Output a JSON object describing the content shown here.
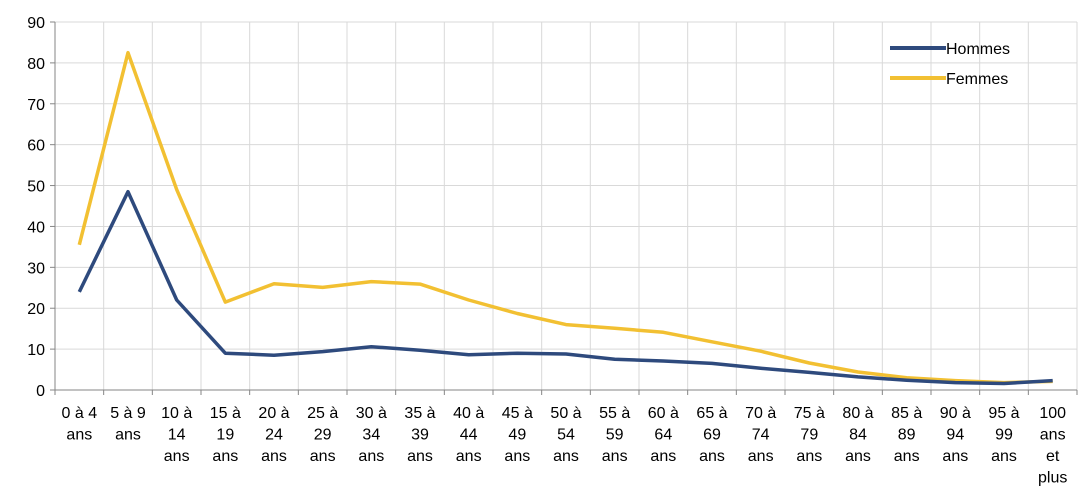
{
  "chart_data": {
    "type": "line",
    "title": "",
    "xlabel": "",
    "ylabel": "",
    "ylim": [
      0,
      90
    ],
    "yticks": [
      0,
      10,
      20,
      30,
      40,
      50,
      60,
      70,
      80,
      90
    ],
    "grid": true,
    "legend_position": "top-right",
    "categories": [
      [
        "0 à 4",
        "ans"
      ],
      [
        "5 à 9",
        "ans"
      ],
      [
        "10 à",
        "14",
        "ans"
      ],
      [
        "15 à",
        "19",
        "ans"
      ],
      [
        "20 à",
        "24",
        "ans"
      ],
      [
        "25 à",
        "29",
        "ans"
      ],
      [
        "30 à",
        "34",
        "ans"
      ],
      [
        "35 à",
        "39",
        "ans"
      ],
      [
        "40 à",
        "44",
        "ans"
      ],
      [
        "45 à",
        "49",
        "ans"
      ],
      [
        "50 à",
        "54",
        "ans"
      ],
      [
        "55 à",
        "59",
        "ans"
      ],
      [
        "60 à",
        "64",
        "ans"
      ],
      [
        "65 à",
        "69",
        "ans"
      ],
      [
        "70 à",
        "74",
        "ans"
      ],
      [
        "75 à",
        "79",
        "ans"
      ],
      [
        "80 à",
        "84",
        "ans"
      ],
      [
        "85 à",
        "89",
        "ans"
      ],
      [
        "90 à",
        "94",
        "ans"
      ],
      [
        "95 à",
        "99",
        "ans"
      ],
      [
        "100",
        "ans",
        "et",
        "plus"
      ]
    ],
    "series": [
      {
        "name": "Hommes",
        "color": "#2e4a7d",
        "values": [
          24,
          48.5,
          22,
          9,
          8.5,
          9.4,
          10.6,
          9.7,
          8.6,
          9,
          8.8,
          7.5,
          7.1,
          6.5,
          5.3,
          4.3,
          3.2,
          2.4,
          1.8,
          1.6,
          2.3
        ]
      },
      {
        "name": "Femmes",
        "color": "#f2c032",
        "values": [
          35.5,
          82.5,
          49,
          21.5,
          26,
          25.1,
          26.5,
          25.9,
          22,
          18.7,
          16,
          15.1,
          14.1,
          11.8,
          9.5,
          6.6,
          4.4,
          3,
          2.3,
          1.8,
          2.1
        ]
      }
    ]
  }
}
